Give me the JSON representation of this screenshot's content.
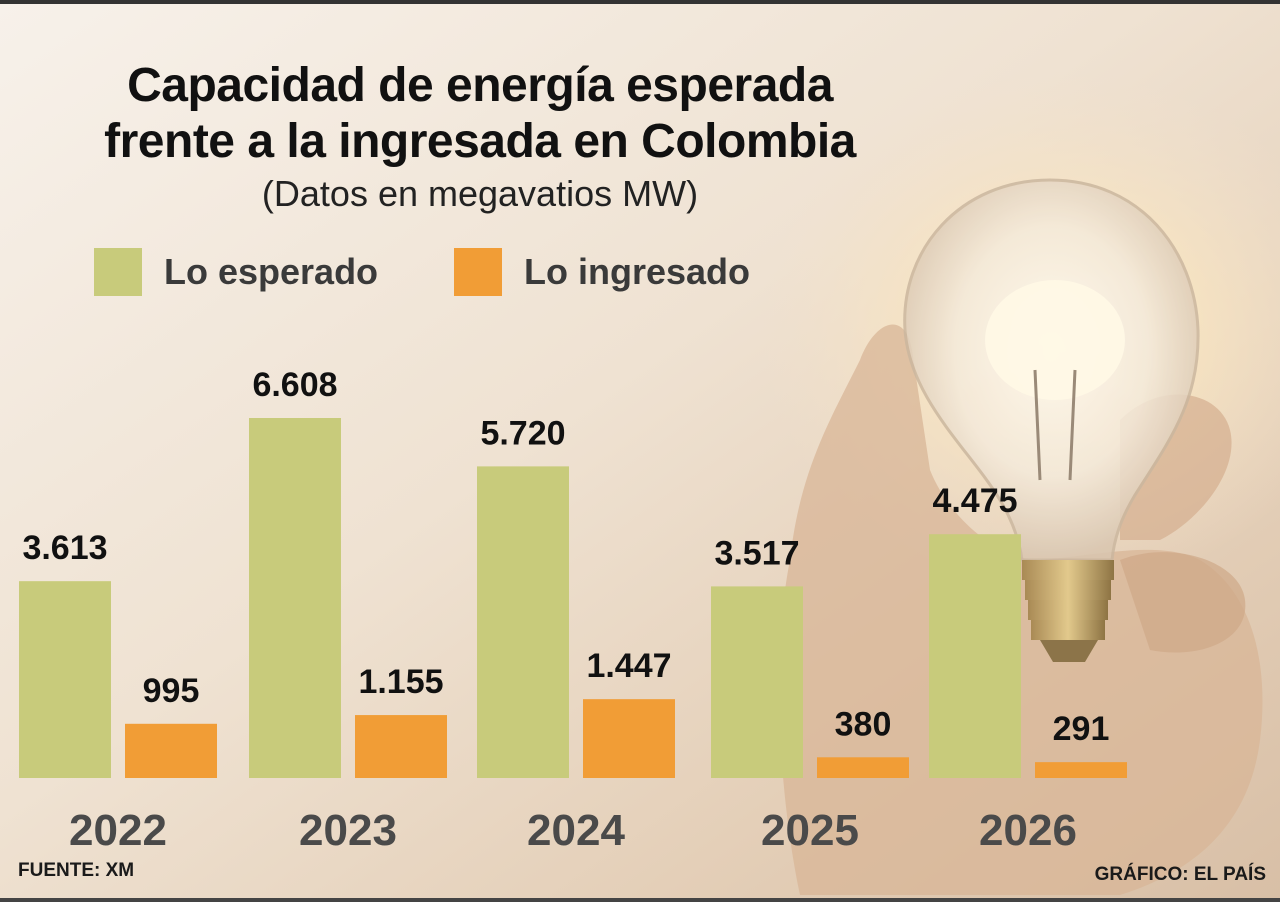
{
  "title_line1": "Capacidad de energía esperada",
  "title_line2": "frente a la ingresada en Colombia",
  "subtitle": "(Datos en megavatios MW)",
  "source": "FUENTE: XM",
  "credit": "GRÁFICO: EL PAÍS",
  "colors": {
    "esperado": "#c8cb7b",
    "ingresado": "#f19d36",
    "year_text": "#4a4a4a"
  },
  "chart_data": {
    "type": "bar",
    "title": "Capacidad de energía esperada frente a la ingresada en Colombia",
    "subtitle": "(Datos en megavatios MW)",
    "categories": [
      "2022",
      "2023",
      "2024",
      "2025",
      "2026"
    ],
    "series": [
      {
        "name": "Lo esperado",
        "values": [
          3613,
          6608,
          5720,
          3517,
          4475
        ],
        "labels": [
          "3.613",
          "6.608",
          "5.720",
          "3.517",
          "4.475"
        ]
      },
      {
        "name": "Lo ingresado",
        "values": [
          995,
          1155,
          1447,
          380,
          291
        ],
        "labels": [
          "995",
          "1.155",
          "1.447",
          "380",
          "291"
        ]
      }
    ],
    "ylim": [
      0,
      6608
    ],
    "legend": "top-left",
    "grid": false
  }
}
